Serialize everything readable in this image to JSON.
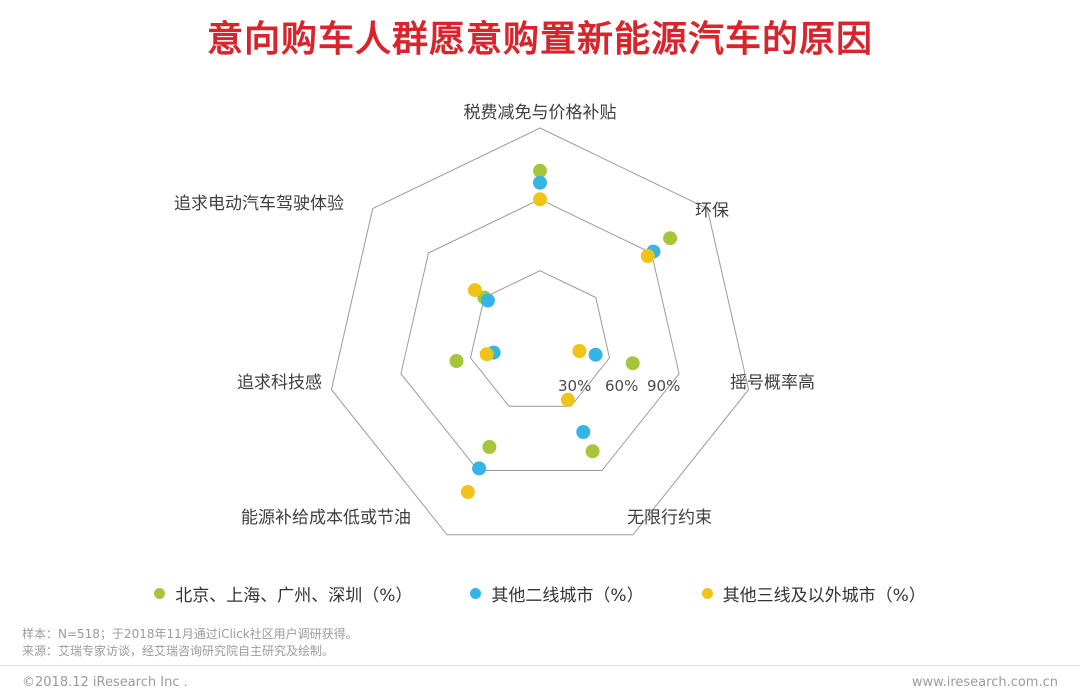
{
  "page": {
    "title": "意向购车人群愿意购置新能源汽车的原因",
    "title_color": "#d9242c",
    "footnote_sample": "样本：N=518；于2018年11月通过iClick社区用户调研获得。",
    "footnote_source": "来源：艾瑞专家访谈，经艾瑞咨询研究院自主研究及绘制。",
    "copyright": "©2018.12 iResearch Inc .",
    "website": "www.iresearch.com.cn"
  },
  "chart_data": {
    "type": "radar",
    "style": "dots-only",
    "title": "意向购车人群愿意购置新能源汽车的原因",
    "max": 90,
    "rings": [
      30,
      60,
      90
    ],
    "ring_labels": [
      "30%",
      "60%",
      "90%"
    ],
    "grid_color": "#9b9b9b",
    "categories": [
      "税费减免与价格补贴",
      "环保",
      "摇号概率高",
      "无限行约束",
      "能源补给成本低或节油",
      "追求科技感",
      "追求电动汽车驾驶体验"
    ],
    "series": [
      {
        "name": "北京、上海、广州、深圳（%）",
        "color": "#a5c63b",
        "values": [
          72,
          70,
          40,
          51,
          49,
          36,
          30
        ]
      },
      {
        "name": "其他二线城市（%）",
        "color": "#35b5e5",
        "values": [
          67,
          61,
          24,
          42,
          59,
          20,
          28
        ]
      },
      {
        "name": "其他三线及以外城市（%）",
        "color": "#f0c319",
        "values": [
          60,
          58,
          17,
          27,
          70,
          23,
          35
        ]
      }
    ],
    "legend_position": "bottom",
    "grid": "concentric-heptagons-no-spokes"
  }
}
